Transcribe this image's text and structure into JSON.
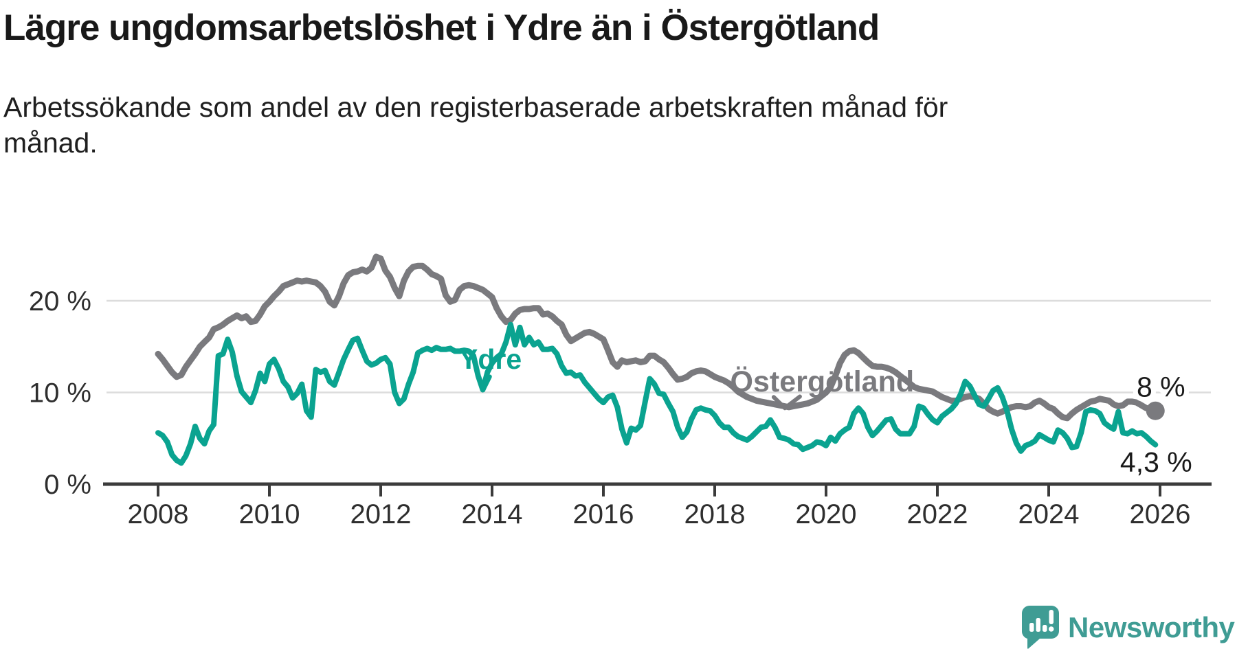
{
  "header": {
    "title": "Lägre ungdomsarbetslöshet i Ydre än i Östergötland",
    "subtitle": "Arbetssökande som andel av den registerbaserade arbetskraften månad för månad."
  },
  "footer": {
    "brand": "Newsworthy",
    "logo_icon": "speech-bubble-bar-chart-exclamation"
  },
  "colors": {
    "ydre": "#0aa390",
    "ostergotland": "#7a7a7e",
    "grid": "#dcdcdc",
    "axis": "#3b3b3b",
    "tick_text": "#2e2e2e",
    "end_label_text": "#1a1a1a",
    "brand_teal": "#3f9c94",
    "background": "#ffffff"
  },
  "chart_data": {
    "type": "line",
    "title": "Lägre ungdomsarbetslöshet i Ydre än i Östergötland",
    "xlabel": "",
    "ylabel": "",
    "grid": "horizontal",
    "legend_position": "inline-labels",
    "x_axis": {
      "base_year": 2008,
      "range": [
        2007.05,
        2026.9
      ],
      "ticks": [
        2008,
        2010,
        2012,
        2014,
        2016,
        2018,
        2020,
        2022,
        2024,
        2026
      ]
    },
    "y_axis": {
      "range": [
        0,
        26.5
      ],
      "ticks": [
        {
          "value": 0,
          "label": "0 %"
        },
        {
          "value": 10,
          "label": "10 %"
        },
        {
          "value": 20,
          "label": "20 %"
        }
      ]
    },
    "series": [
      {
        "id": "ostergotland",
        "name": "Östergötland",
        "color_ref": "ostergotland",
        "stroke_width": 9,
        "end_dot": true,
        "start_year": 2008,
        "points_per_year": 12,
        "values": [
          14.2,
          13.6,
          12.9,
          12.2,
          11.7,
          11.9,
          12.8,
          13.5,
          14.2,
          15.0,
          15.5,
          16.0,
          16.9,
          17.1,
          17.4,
          17.8,
          18.1,
          18.4,
          18.1,
          18.3,
          17.7,
          17.8,
          18.5,
          19.4,
          19.9,
          20.5,
          21.0,
          21.6,
          21.8,
          22.0,
          22.2,
          22.1,
          22.2,
          22.1,
          22.0,
          21.6,
          21.0,
          19.9,
          19.5,
          20.5,
          21.9,
          22.8,
          23.1,
          23.2,
          23.4,
          23.2,
          23.6,
          24.8,
          24.6,
          23.3,
          22.6,
          21.4,
          20.5,
          22.2,
          23.2,
          23.7,
          23.8,
          23.8,
          23.4,
          22.9,
          22.7,
          22.4,
          20.6,
          19.9,
          20.1,
          21.2,
          21.6,
          21.7,
          21.6,
          21.4,
          21.2,
          20.8,
          20.4,
          19.2,
          18.3,
          17.7,
          17.9,
          18.6,
          19.0,
          19.1,
          19.1,
          19.2,
          19.2,
          18.5,
          18.6,
          18.3,
          17.8,
          17.4,
          16.3,
          15.6,
          15.9,
          16.2,
          16.5,
          16.6,
          16.4,
          16.1,
          15.8,
          14.6,
          13.3,
          12.8,
          13.5,
          13.3,
          13.4,
          13.5,
          13.3,
          13.4,
          14.0,
          14.0,
          13.6,
          13.3,
          12.7,
          12.0,
          11.4,
          11.5,
          11.7,
          12.1,
          12.3,
          12.4,
          12.3,
          12.0,
          11.7,
          11.5,
          11.3,
          11.0,
          10.6,
          10.1,
          9.8,
          9.5,
          9.3,
          9.1,
          9.0,
          8.9,
          8.8,
          8.7,
          8.6,
          8.5,
          8.4,
          8.5,
          8.6,
          8.7,
          8.8,
          9.0,
          9.2,
          9.6,
          10.0,
          10.6,
          11.8,
          13.2,
          14.1,
          14.5,
          14.6,
          14.3,
          13.8,
          13.3,
          12.9,
          12.8,
          12.8,
          12.7,
          12.5,
          12.2,
          11.8,
          11.4,
          11.0,
          10.6,
          10.4,
          10.3,
          10.2,
          10.1,
          9.8,
          9.5,
          9.3,
          9.1,
          9.1,
          9.3,
          9.5,
          9.6,
          9.5,
          9.3,
          8.8,
          8.2,
          7.9,
          7.7,
          7.9,
          8.2,
          8.4,
          8.5,
          8.5,
          8.4,
          8.5,
          8.9,
          9.1,
          8.8,
          8.4,
          8.2,
          7.7,
          7.3,
          7.2,
          7.7,
          8.1,
          8.4,
          8.7,
          9.0,
          9.1,
          9.3,
          9.2,
          9.1,
          8.7,
          8.5,
          8.6,
          9.0,
          9.0,
          8.9,
          8.6,
          8.3,
          8.1,
          8.0
        ]
      },
      {
        "id": "ydre",
        "name": "Ydre",
        "color_ref": "ydre",
        "stroke_width": 8,
        "end_dot": false,
        "start_year": 2008,
        "points_per_year": 12,
        "values": [
          5.6,
          5.3,
          4.6,
          3.2,
          2.6,
          2.3,
          3.1,
          4.4,
          6.3,
          5.0,
          4.4,
          5.8,
          6.5,
          14.0,
          14.2,
          15.8,
          14.4,
          11.8,
          10.1,
          9.5,
          8.9,
          10.2,
          12.1,
          11.2,
          13.1,
          13.6,
          12.6,
          11.2,
          10.6,
          9.4,
          9.9,
          10.9,
          8.0,
          7.3,
          12.5,
          12.2,
          12.4,
          11.2,
          10.8,
          12.2,
          13.6,
          14.7,
          15.7,
          15.9,
          14.6,
          13.4,
          13.0,
          13.2,
          13.6,
          13.8,
          13.1,
          10.0,
          8.8,
          9.3,
          10.9,
          12.2,
          14.3,
          14.6,
          14.8,
          14.6,
          14.9,
          14.7,
          14.7,
          14.8,
          14.5,
          14.5,
          14.6,
          14.5,
          14.0,
          11.8,
          10.3,
          12.2,
          13.2,
          13.8,
          14.2,
          15.5,
          17.4,
          15.2,
          17.1,
          15.2,
          16.0,
          15.2,
          15.5,
          14.7,
          14.7,
          14.8,
          14.2,
          12.9,
          12.1,
          12.2,
          11.8,
          11.9,
          11.1,
          10.5,
          9.9,
          9.3,
          8.9,
          9.5,
          9.7,
          8.4,
          6.0,
          4.5,
          6.1,
          5.9,
          6.4,
          9.0,
          11.5,
          10.9,
          9.9,
          9.8,
          8.8,
          7.9,
          6.2,
          5.1,
          5.7,
          7.1,
          8.1,
          8.3,
          8.1,
          8.0,
          7.5,
          6.7,
          6.2,
          6.2,
          5.6,
          5.2,
          5.0,
          4.8,
          5.2,
          5.7,
          6.2,
          6.3,
          7.0,
          6.2,
          5.1,
          5.0,
          4.8,
          4.4,
          4.3,
          3.8,
          4.0,
          4.2,
          4.6,
          4.5,
          4.2,
          5.1,
          4.7,
          5.5,
          5.9,
          6.2,
          7.7,
          8.3,
          7.7,
          6.2,
          5.3,
          5.8,
          6.4,
          7.0,
          7.1,
          6.0,
          5.5,
          5.5,
          5.5,
          6.3,
          8.5,
          8.3,
          7.6,
          7.0,
          6.7,
          7.4,
          7.8,
          8.2,
          8.8,
          9.8,
          11.2,
          10.7,
          9.7,
          8.7,
          8.5,
          9.3,
          10.2,
          10.5,
          9.5,
          8.0,
          6.0,
          4.5,
          3.6,
          4.2,
          4.4,
          4.7,
          5.4,
          5.1,
          4.8,
          4.6,
          5.9,
          5.6,
          5.0,
          4.0,
          4.1,
          5.6,
          7.9,
          8.1,
          8.0,
          7.7,
          6.7,
          6.3,
          6.0,
          7.9,
          5.6,
          5.5,
          5.8,
          5.5,
          5.6,
          5.2,
          4.7,
          4.3
        ]
      }
    ],
    "series_labels": [
      {
        "text": "Ydre",
        "color_ref": "ydre",
        "x_year": 2013.97,
        "y_value": 12.6,
        "font_size": 41,
        "bold": true,
        "arrow": [
          [
            2013.76,
            11.8
          ],
          [
            2013.85,
            10.35
          ],
          [
            2013.96,
            11.72
          ]
        ]
      },
      {
        "text": "Östergötland",
        "color_ref": "ostergotland",
        "x_year": 2019.93,
        "y_value": 10.12,
        "font_size": 43,
        "bold": true,
        "arrow": [
          [
            2019.06,
            9.5
          ],
          [
            2019.26,
            8.3
          ],
          [
            2019.53,
            9.55
          ]
        ]
      }
    ],
    "end_labels": [
      {
        "text": "8 %",
        "anchor": "start",
        "x_year": 2025.58,
        "y_value": 9.55,
        "halo": true
      },
      {
        "text": "4,3 %",
        "anchor": "middle",
        "x_year": 2025.93,
        "y_value": 1.35,
        "halo": false
      }
    ]
  }
}
